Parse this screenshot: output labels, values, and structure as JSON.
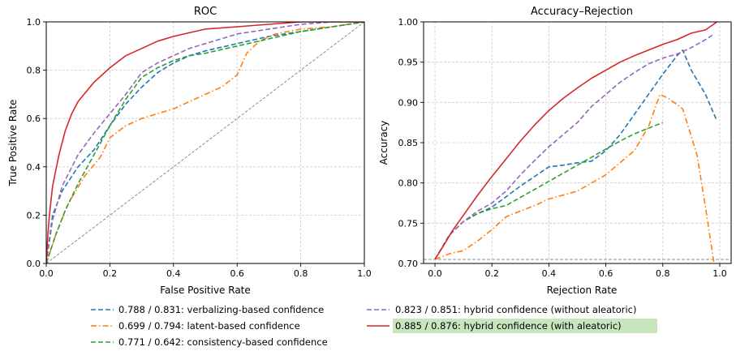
{
  "legend": {
    "entries": [
      {
        "label": "0.788 / 0.831: verbalizing-based confidence",
        "color": "#1f77b4",
        "dash": "dashed"
      },
      {
        "label": "0.699 / 0.794: latent-based confidence",
        "color": "#ff7f0e",
        "dash": "dashdot"
      },
      {
        "label": "0.771 / 0.642: consistency-based confidence",
        "color": "#2ca02c",
        "dash": "dashed"
      },
      {
        "label": "0.823 / 0.851: hybrid confidence (without aleatoric)",
        "color": "#9467bd",
        "dash": "dashed"
      },
      {
        "label": "0.885 / 0.876: hybrid confidence (with aleatoric)",
        "color": "#d62728",
        "dash": "solid",
        "highlight": "#c7e6bd"
      }
    ]
  },
  "chart_data": [
    {
      "type": "line",
      "title": "ROC",
      "xlabel": "False Positive Rate",
      "ylabel": "True Positive Rate",
      "xlim": [
        0,
        1
      ],
      "ylim": [
        0,
        1
      ],
      "xticks": [
        "0.0",
        "0.2",
        "0.4",
        "0.6",
        "0.8",
        "1.0"
      ],
      "yticks": [
        "0.0",
        "0.2",
        "0.4",
        "0.6",
        "0.8",
        "1.0"
      ],
      "grid": true,
      "reference_line": {
        "x": [
          0,
          1
        ],
        "y": [
          0,
          1
        ],
        "color": "#808080",
        "dash": "dashed"
      },
      "series": [
        {
          "color": "#1f77b4",
          "dash": "dashed",
          "x": [
            0,
            0.02,
            0.05,
            0.1,
            0.15,
            0.2,
            0.25,
            0.3,
            0.35,
            0.4,
            0.45,
            0.5,
            0.6,
            0.7,
            0.8,
            0.9,
            1.0
          ],
          "y": [
            0,
            0.2,
            0.3,
            0.4,
            0.47,
            0.57,
            0.66,
            0.73,
            0.79,
            0.83,
            0.86,
            0.88,
            0.91,
            0.94,
            0.96,
            0.98,
            1.0
          ]
        },
        {
          "color": "#ff7f0e",
          "dash": "dashdot",
          "x": [
            0,
            0.03,
            0.07,
            0.12,
            0.17,
            0.2,
            0.25,
            0.3,
            0.35,
            0.4,
            0.45,
            0.5,
            0.55,
            0.6,
            0.63,
            0.67,
            0.72,
            0.8,
            0.9,
            1.0
          ],
          "y": [
            0,
            0.12,
            0.25,
            0.36,
            0.44,
            0.52,
            0.57,
            0.6,
            0.62,
            0.64,
            0.67,
            0.7,
            0.73,
            0.78,
            0.87,
            0.92,
            0.95,
            0.97,
            0.98,
            1.0
          ]
        },
        {
          "color": "#2ca02c",
          "dash": "dashed",
          "x": [
            0,
            0.03,
            0.06,
            0.1,
            0.15,
            0.2,
            0.25,
            0.3,
            0.35,
            0.4,
            0.45,
            0.5,
            0.6,
            0.7,
            0.8,
            0.9,
            1.0
          ],
          "y": [
            0,
            0.12,
            0.22,
            0.33,
            0.45,
            0.57,
            0.68,
            0.77,
            0.81,
            0.84,
            0.86,
            0.87,
            0.9,
            0.93,
            0.96,
            0.98,
            1.0
          ]
        },
        {
          "color": "#9467bd",
          "dash": "dashed",
          "x": [
            0,
            0.02,
            0.05,
            0.1,
            0.15,
            0.2,
            0.25,
            0.3,
            0.35,
            0.4,
            0.45,
            0.5,
            0.55,
            0.6,
            0.7,
            0.8,
            0.9,
            1.0
          ],
          "y": [
            0,
            0.18,
            0.32,
            0.45,
            0.54,
            0.62,
            0.7,
            0.79,
            0.83,
            0.86,
            0.89,
            0.91,
            0.93,
            0.95,
            0.97,
            0.99,
            1.0,
            1.0
          ]
        },
        {
          "color": "#d62728",
          "dash": "solid",
          "x": [
            0,
            0.005,
            0.01,
            0.02,
            0.04,
            0.06,
            0.08,
            0.1,
            0.15,
            0.2,
            0.25,
            0.3,
            0.35,
            0.4,
            0.5,
            0.6,
            0.7,
            0.8,
            0.9,
            1.0
          ],
          "y": [
            0,
            0.12,
            0.2,
            0.32,
            0.45,
            0.55,
            0.62,
            0.67,
            0.75,
            0.81,
            0.86,
            0.89,
            0.92,
            0.94,
            0.97,
            0.98,
            0.99,
            1.0,
            1.0,
            1.0
          ]
        }
      ]
    },
    {
      "type": "line",
      "title": "Accuracy–Rejection",
      "xlabel": "Rejection Rate",
      "ylabel": "Accuracy",
      "xlim": [
        -0.04,
        1.04
      ],
      "ylim": [
        0.7,
        1.0
      ],
      "xticks": [
        "0.0",
        "0.2",
        "0.4",
        "0.6",
        "0.8",
        "1.0"
      ],
      "yticks": [
        "0.70",
        "0.75",
        "0.80",
        "0.85",
        "0.90",
        "0.95",
        "1.00"
      ],
      "grid": true,
      "baseline": {
        "y": 0.705,
        "color": "#808080",
        "dash": "dashed"
      },
      "series": [
        {
          "color": "#1f77b4",
          "dash": "dashed",
          "x": [
            0,
            0.05,
            0.1,
            0.15,
            0.2,
            0.25,
            0.3,
            0.35,
            0.4,
            0.45,
            0.5,
            0.55,
            0.6,
            0.65,
            0.7,
            0.75,
            0.8,
            0.85,
            0.87,
            0.9,
            0.95,
            0.99
          ],
          "y": [
            0.705,
            0.735,
            0.752,
            0.762,
            0.77,
            0.783,
            0.796,
            0.808,
            0.82,
            0.822,
            0.825,
            0.827,
            0.84,
            0.86,
            0.885,
            0.91,
            0.935,
            0.958,
            0.965,
            0.94,
            0.91,
            0.877
          ]
        },
        {
          "color": "#ff7f0e",
          "dash": "dashdot",
          "x": [
            0,
            0.05,
            0.1,
            0.15,
            0.2,
            0.25,
            0.3,
            0.35,
            0.4,
            0.45,
            0.5,
            0.55,
            0.6,
            0.65,
            0.7,
            0.75,
            0.79,
            0.82,
            0.87,
            0.92,
            0.95,
            0.98
          ],
          "y": [
            0.705,
            0.712,
            0.716,
            0.728,
            0.742,
            0.758,
            0.765,
            0.772,
            0.78,
            0.785,
            0.79,
            0.8,
            0.81,
            0.825,
            0.84,
            0.87,
            0.91,
            0.905,
            0.892,
            0.835,
            0.77,
            0.7
          ]
        },
        {
          "color": "#2ca02c",
          "dash": "dashed",
          "x": [
            0,
            0.05,
            0.1,
            0.15,
            0.2,
            0.25,
            0.3,
            0.35,
            0.4,
            0.45,
            0.5,
            0.55,
            0.6,
            0.65,
            0.7,
            0.75,
            0.8
          ],
          "y": [
            0.705,
            0.735,
            0.752,
            0.762,
            0.768,
            0.772,
            0.782,
            0.792,
            0.802,
            0.812,
            0.822,
            0.832,
            0.842,
            0.852,
            0.861,
            0.868,
            0.875
          ]
        },
        {
          "color": "#9467bd",
          "dash": "dashed",
          "x": [
            0,
            0.05,
            0.1,
            0.15,
            0.2,
            0.25,
            0.3,
            0.35,
            0.4,
            0.45,
            0.5,
            0.55,
            0.6,
            0.65,
            0.7,
            0.75,
            0.8,
            0.85,
            0.9,
            0.95,
            0.98
          ],
          "y": [
            0.705,
            0.735,
            0.752,
            0.765,
            0.775,
            0.79,
            0.81,
            0.828,
            0.845,
            0.86,
            0.875,
            0.895,
            0.91,
            0.925,
            0.937,
            0.948,
            0.955,
            0.96,
            0.968,
            0.978,
            0.985
          ]
        },
        {
          "color": "#d62728",
          "dash": "solid",
          "x": [
            0,
            0.03,
            0.06,
            0.1,
            0.15,
            0.2,
            0.25,
            0.3,
            0.35,
            0.4,
            0.45,
            0.5,
            0.55,
            0.6,
            0.65,
            0.7,
            0.75,
            0.8,
            0.85,
            0.9,
            0.95,
            0.99
          ],
          "y": [
            0.705,
            0.722,
            0.74,
            0.76,
            0.785,
            0.808,
            0.83,
            0.852,
            0.872,
            0.89,
            0.905,
            0.918,
            0.93,
            0.94,
            0.95,
            0.958,
            0.965,
            0.972,
            0.978,
            0.986,
            0.99,
            1.0
          ]
        }
      ]
    }
  ]
}
